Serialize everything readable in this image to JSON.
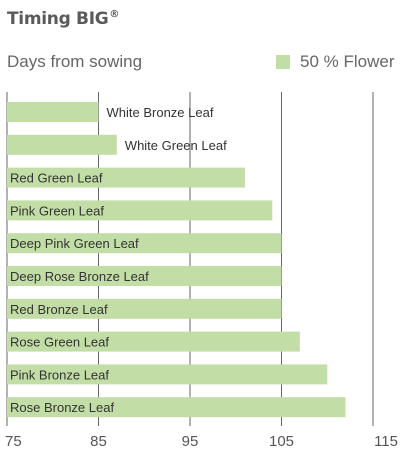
{
  "chart_data": {
    "type": "bar",
    "orientation": "horizontal",
    "title": "Timing BIG",
    "title_mark": "®",
    "subtitle": "Days from sowing",
    "xlim": [
      75,
      115
    ],
    "xticks": [
      "75",
      "85",
      "95",
      "105",
      "115"
    ],
    "grid": true,
    "legend_position": "top-right",
    "bar_color": "#c2dea6",
    "series": [
      {
        "name": "50 % Flower"
      }
    ],
    "categories": [
      "White Bronze Leaf",
      "White Green Leaf",
      "Red Green Leaf",
      "Pink Green Leaf",
      "Deep Pink Green Leaf",
      "Deep Rose Bronze Leaf",
      "Red Bronze Leaf",
      "Rose Green Leaf",
      "Pink Bronze Leaf",
      "Rose Bronze Leaf"
    ],
    "values": [
      85,
      87,
      101,
      104,
      105,
      105,
      105,
      107,
      110,
      112
    ]
  }
}
